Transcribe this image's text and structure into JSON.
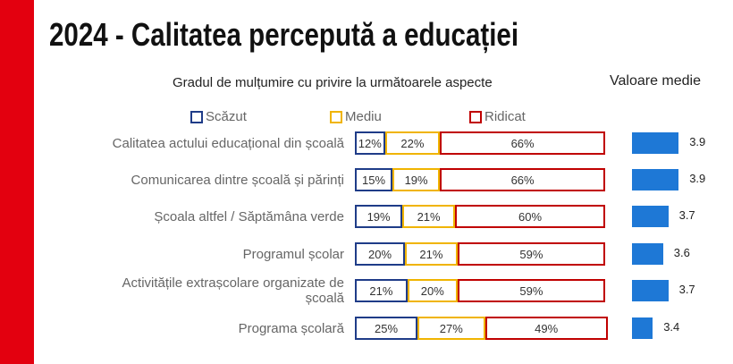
{
  "chart_data": [
    {
      "type": "stacked-bar",
      "title": "2024 - Calitatea percepută a educației",
      "subtitle": "Gradul de mulțumire cu privire la următoarele aspecte",
      "categories": [
        "Calitatea actului educațional din școală",
        "Comunicarea dintre școală și părinți",
        "Școala altfel / Săptămâna verde",
        "Programul școlar",
        "Activitățile extrașcolare organizate de școală",
        "Programa școlară"
      ],
      "series": [
        {
          "name": "Scăzut",
          "color": "#1f3c88",
          "values": [
            12,
            15,
            19,
            20,
            21,
            25
          ],
          "value_labels": [
            "12%",
            "15%",
            "19%",
            "20%",
            "21%",
            "25%"
          ]
        },
        {
          "name": "Mediu",
          "color": "#f0b400",
          "values": [
            22,
            19,
            21,
            21,
            20,
            27
          ],
          "value_labels": [
            "22%",
            "19%",
            "21%",
            "21%",
            "20%",
            "27%"
          ]
        },
        {
          "name": "Ridicat",
          "color": "#c00000",
          "values": [
            66,
            66,
            60,
            59,
            59,
            49
          ],
          "value_labels": [
            "66%",
            "66%",
            "60%",
            "59%",
            "59%",
            "49%"
          ]
        }
      ],
      "xlim": [
        0,
        100
      ]
    },
    {
      "type": "bar",
      "title": "Valoare medie",
      "values": [
        3.9,
        3.9,
        3.7,
        3.6,
        3.7,
        3.4
      ],
      "color": "#1e78d6",
      "xlim": [
        3,
        4
      ]
    }
  ]
}
